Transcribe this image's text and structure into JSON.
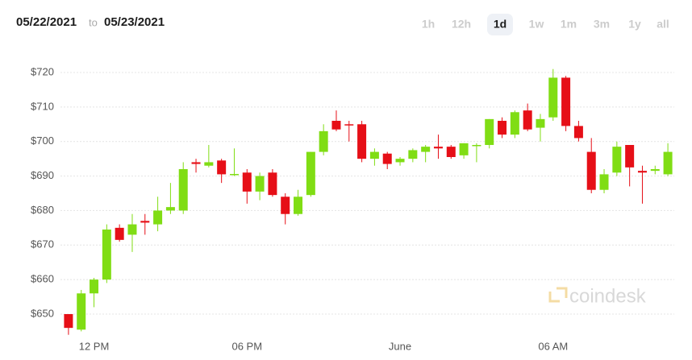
{
  "header": {
    "date_from": "05/22/2021",
    "separator": "to",
    "date_to": "05/23/2021"
  },
  "range_buttons": [
    "1h",
    "12h",
    "1d",
    "1w",
    "1m",
    "3m",
    "1y",
    "all"
  ],
  "selected_range": 2,
  "watermark": "coindesk",
  "chart_data": {
    "type": "candlestick",
    "categories": [
      null,
      null,
      "12 PM",
      null,
      null,
      null,
      null,
      null,
      null,
      null,
      null,
      null,
      null,
      null,
      "06 PM",
      null,
      null,
      null,
      null,
      null,
      null,
      null,
      null,
      null,
      null,
      null,
      "June",
      null,
      null,
      null,
      null,
      null,
      null,
      null,
      null,
      null,
      null,
      null,
      "06 AM",
      null,
      null,
      null,
      null,
      null,
      null,
      null,
      null,
      null
    ],
    "open": [
      650,
      645.5,
      656,
      660,
      675,
      673,
      677,
      676,
      680,
      680,
      694,
      693,
      694.5,
      690.5,
      691,
      685.5,
      691,
      684,
      679,
      684.5,
      697,
      706,
      705,
      705,
      695,
      696.5,
      694,
      695,
      697,
      698.5,
      698.5,
      696,
      699,
      699,
      706,
      702,
      709,
      704,
      707,
      718.5,
      704.5,
      697,
      686,
      691,
      699,
      691.5,
      691.5,
      690.5
    ],
    "high": [
      650,
      657,
      660.5,
      676,
      676,
      679,
      679,
      684,
      688,
      694,
      695,
      699,
      695,
      698,
      692,
      691,
      692,
      685,
      686,
      697,
      705,
      709,
      706,
      706,
      698,
      697,
      695.5,
      698,
      699,
      702,
      699,
      699.5,
      699.5,
      706.5,
      707,
      709,
      711,
      708,
      721,
      719,
      706,
      701,
      692,
      700,
      699,
      693,
      693,
      699.5
    ],
    "low": [
      644,
      645,
      652,
      659,
      671,
      668,
      673,
      674,
      679,
      679,
      691,
      692.5,
      688,
      690,
      682,
      683,
      684,
      676,
      678.5,
      684,
      696,
      703,
      700,
      694,
      693,
      692,
      693,
      694,
      694,
      695,
      695,
      695,
      694,
      698,
      701,
      701,
      703,
      700,
      706,
      703,
      700,
      685,
      685,
      690,
      687,
      682,
      690.5,
      690
    ],
    "close": [
      646,
      656,
      660,
      674.5,
      671.5,
      676,
      676.5,
      680,
      681,
      692,
      693.5,
      694,
      690.5,
      690.6,
      685.5,
      690,
      684.5,
      679,
      684,
      697,
      703,
      703.5,
      704.8,
      695,
      697,
      693.5,
      695,
      697.5,
      698.5,
      698,
      695.5,
      699.5,
      699,
      706.5,
      702,
      708.5,
      703.5,
      706.5,
      718.5,
      704.5,
      701,
      686,
      690.5,
      698.5,
      692.5,
      691,
      692,
      697
    ],
    "up_color": "#80dd14",
    "down_color": "#e60f17",
    "ylim": [
      643,
      727
    ],
    "yticks": [
      {
        "value": 650,
        "label": "$650"
      },
      {
        "value": 660,
        "label": "$660"
      },
      {
        "value": 670,
        "label": "$670"
      },
      {
        "value": 680,
        "label": "$680"
      },
      {
        "value": 690,
        "label": "$690"
      },
      {
        "value": 700,
        "label": "$700"
      },
      {
        "value": 710,
        "label": "$710"
      },
      {
        "value": 720,
        "label": "$720"
      }
    ],
    "grid": true
  }
}
